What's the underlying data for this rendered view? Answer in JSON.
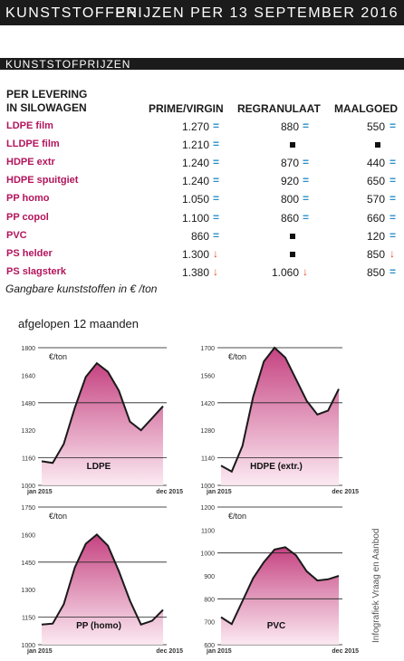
{
  "header": {
    "left": "KUNSTSTOFFEN",
    "right": "PRIJZEN PER 13 SEPTEMBER 2016"
  },
  "section": "KUNSTSTOFPRIJZEN",
  "table": {
    "head_left_1": "PER LEVERING",
    "head_left_2": "IN SILOWAGEN",
    "columns": [
      "PRIME/VIRGIN",
      "REGRANULAAT",
      "MAALGOED"
    ],
    "rows": [
      {
        "label": "LDPE film",
        "prime": "1.270",
        "prime_t": "eq",
        "regr": "880",
        "regr_t": "eq",
        "maal": "550",
        "maal_t": "eq"
      },
      {
        "label": "LLDPE film",
        "prime": "1.210",
        "prime_t": "eq",
        "regr": "",
        "regr_t": "sq",
        "maal": "",
        "maal_t": "sq"
      },
      {
        "label": "HDPE extr",
        "prime": "1.240",
        "prime_t": "eq",
        "regr": "870",
        "regr_t": "eq",
        "maal": "440",
        "maal_t": "eq"
      },
      {
        "label": "HDPE spuitgiet",
        "prime": "1.240",
        "prime_t": "eq",
        "regr": "920",
        "regr_t": "eq",
        "maal": "650",
        "maal_t": "eq"
      },
      {
        "label": "PP homo",
        "prime": "1.050",
        "prime_t": "eq",
        "regr": "800",
        "regr_t": "eq",
        "maal": "570",
        "maal_t": "eq"
      },
      {
        "label": "PP copol",
        "prime": "1.100",
        "prime_t": "eq",
        "regr": "860",
        "regr_t": "eq",
        "maal": "660",
        "maal_t": "eq"
      },
      {
        "label": "PVC",
        "prime": "860",
        "prime_t": "eq",
        "regr": "",
        "regr_t": "sq",
        "maal": "120",
        "maal_t": "eq"
      },
      {
        "label": "PS helder",
        "prime": "1.300",
        "prime_t": "down",
        "regr": "",
        "regr_t": "sq",
        "maal": "850",
        "maal_t": "down"
      },
      {
        "label": "PS slagsterk",
        "prime": "1.380",
        "prime_t": "down",
        "regr": "1.060",
        "regr_t": "down",
        "maal": "850",
        "maal_t": "eq"
      }
    ],
    "note": "Gangbare kunststoffen in € /ton"
  },
  "period_label": "afgelopen 12 maanden",
  "credit": "Infografiek Vraag en Aanbod",
  "colors": {
    "bar": "#1b1b1b",
    "label": "#b3145c",
    "eq": "#2a8fc9",
    "down": "#e04a22",
    "fill_top": "#c2387a",
    "fill_bottom": "#fbe7f0"
  },
  "chart_data": [
    {
      "type": "area",
      "title": "LDPE",
      "unit": "€/ton",
      "xstart": "jan 2015",
      "xend": "dec 2015",
      "ylim": [
        1000,
        1800
      ],
      "yticks": [
        1000,
        1160,
        1320,
        1480,
        1640,
        1800
      ],
      "ref_lines": [
        1480,
        1160
      ],
      "values": [
        1140,
        1130,
        1240,
        1450,
        1630,
        1710,
        1660,
        1550,
        1370,
        1320,
        1390,
        1460
      ]
    },
    {
      "type": "area",
      "title": "HDPE (extr.)",
      "unit": "€/ton",
      "xstart": "jan 2015",
      "xend": "dec 2015",
      "ylim": [
        1000,
        1700
      ],
      "yticks": [
        1000,
        1140,
        1280,
        1420,
        1560,
        1700
      ],
      "ref_lines": [
        1420,
        1140
      ],
      "values": [
        1100,
        1070,
        1200,
        1450,
        1630,
        1700,
        1650,
        1540,
        1430,
        1360,
        1380,
        1490
      ]
    },
    {
      "type": "area",
      "title": "PP (homo)",
      "unit": "€/ton",
      "xstart": "jan 2015",
      "xend": "dec 2015",
      "ylim": [
        1000,
        1750
      ],
      "yticks": [
        1000,
        1150,
        1300,
        1450,
        1600,
        1750
      ],
      "ref_lines": [
        1450,
        1150
      ],
      "values": [
        1110,
        1115,
        1220,
        1420,
        1550,
        1600,
        1540,
        1400,
        1240,
        1110,
        1130,
        1190
      ]
    },
    {
      "type": "area",
      "title": "PVC",
      "unit": "€/ton",
      "xstart": "jan 2015",
      "xend": "dec 2015",
      "ylim": [
        600,
        1200
      ],
      "yticks": [
        600,
        700,
        800,
        900,
        1000,
        1100,
        1200
      ],
      "ref_lines": [
        1000,
        800
      ],
      "values": [
        720,
        690,
        790,
        890,
        960,
        1015,
        1025,
        990,
        920,
        880,
        885,
        900
      ]
    }
  ]
}
